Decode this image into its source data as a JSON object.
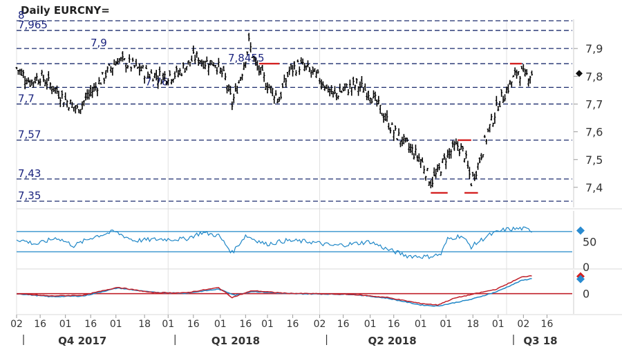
{
  "chart_data": [
    {
      "type": "bar",
      "title": "Daily EURCNY=",
      "price_axis_ticks": [
        7.4,
        7.5,
        7.6,
        7.7,
        7.8,
        7.9
      ],
      "price_axis_tick_labels": [
        "7,4",
        "7,5",
        "7,6",
        "7,7",
        "7,8",
        "7,9"
      ],
      "ylim": [
        7.35,
        8.0
      ],
      "levels": [
        {
          "value": 7.35,
          "label": "7,35"
        },
        {
          "value": 7.43,
          "label": "7,43"
        },
        {
          "value": 7.57,
          "label": "7,57"
        },
        {
          "value": 7.7,
          "label": "7,7"
        },
        {
          "value": 7.76,
          "label": "7,76"
        },
        {
          "value": 7.8455,
          "label": "7,8455"
        },
        {
          "value": 7.9,
          "label": "7,9"
        },
        {
          "value": 7.965,
          "label": "7,965"
        },
        {
          "value": 8.0,
          "label": "8"
        }
      ],
      "last_value": 7.81,
      "anchors": [
        {
          "d": 0,
          "v": 7.83
        },
        {
          "d": 8,
          "v": 7.78
        },
        {
          "d": 14,
          "v": 7.8
        },
        {
          "d": 22,
          "v": 7.76
        },
        {
          "d": 28,
          "v": 7.72
        },
        {
          "d": 36,
          "v": 7.68
        },
        {
          "d": 44,
          "v": 7.74
        },
        {
          "d": 52,
          "v": 7.8
        },
        {
          "d": 60,
          "v": 7.86
        },
        {
          "d": 68,
          "v": 7.84
        },
        {
          "d": 78,
          "v": 7.81
        },
        {
          "d": 86,
          "v": 7.8
        },
        {
          "d": 96,
          "v": 7.81
        },
        {
          "d": 106,
          "v": 7.87
        },
        {
          "d": 112,
          "v": 7.85
        },
        {
          "d": 118,
          "v": 7.85
        },
        {
          "d": 124,
          "v": 7.79
        },
        {
          "d": 128,
          "v": 7.7
        },
        {
          "d": 134,
          "v": 7.82
        },
        {
          "d": 138,
          "v": 7.92
        },
        {
          "d": 142,
          "v": 7.84
        },
        {
          "d": 150,
          "v": 7.76
        },
        {
          "d": 156,
          "v": 7.72
        },
        {
          "d": 162,
          "v": 7.82
        },
        {
          "d": 168,
          "v": 7.84
        },
        {
          "d": 174,
          "v": 7.82
        },
        {
          "d": 182,
          "v": 7.78
        },
        {
          "d": 188,
          "v": 7.73
        },
        {
          "d": 194,
          "v": 7.75
        },
        {
          "d": 202,
          "v": 7.77
        },
        {
          "d": 210,
          "v": 7.74
        },
        {
          "d": 216,
          "v": 7.68
        },
        {
          "d": 224,
          "v": 7.6
        },
        {
          "d": 232,
          "v": 7.55
        },
        {
          "d": 240,
          "v": 7.5
        },
        {
          "d": 246,
          "v": 7.42
        },
        {
          "d": 250,
          "v": 7.45
        },
        {
          "d": 256,
          "v": 7.52
        },
        {
          "d": 262,
          "v": 7.55
        },
        {
          "d": 266,
          "v": 7.52
        },
        {
          "d": 270,
          "v": 7.42
        },
        {
          "d": 274,
          "v": 7.48
        },
        {
          "d": 280,
          "v": 7.6
        },
        {
          "d": 286,
          "v": 7.7
        },
        {
          "d": 292,
          "v": 7.76
        },
        {
          "d": 298,
          "v": 7.82
        },
        {
          "d": 302,
          "v": 7.8
        },
        {
          "d": 306,
          "v": 7.81
        }
      ],
      "red_markers": [
        {
          "d_from": 144,
          "d_to": 156,
          "value": 7.8455
        },
        {
          "d_from": 246,
          "d_to": 256,
          "value": 7.38
        },
        {
          "d_from": 262,
          "d_to": 270,
          "value": 7.57
        },
        {
          "d_from": 266,
          "d_to": 274,
          "value": 7.38
        },
        {
          "d_from": 293,
          "d_to": 300,
          "value": 7.8455
        }
      ]
    },
    {
      "type": "line",
      "indicator": "oscillator",
      "yticks": [
        0,
        50
      ],
      "ylim": [
        0,
        100
      ],
      "bands": [
        30,
        70
      ],
      "anchors": [
        {
          "d": 0,
          "v": 55
        },
        {
          "d": 12,
          "v": 45
        },
        {
          "d": 24,
          "v": 58
        },
        {
          "d": 34,
          "v": 42
        },
        {
          "d": 46,
          "v": 60
        },
        {
          "d": 58,
          "v": 70
        },
        {
          "d": 70,
          "v": 52
        },
        {
          "d": 86,
          "v": 55
        },
        {
          "d": 100,
          "v": 55
        },
        {
          "d": 110,
          "v": 68
        },
        {
          "d": 120,
          "v": 62
        },
        {
          "d": 128,
          "v": 28
        },
        {
          "d": 136,
          "v": 62
        },
        {
          "d": 148,
          "v": 45
        },
        {
          "d": 160,
          "v": 52
        },
        {
          "d": 174,
          "v": 50
        },
        {
          "d": 188,
          "v": 42
        },
        {
          "d": 198,
          "v": 45
        },
        {
          "d": 210,
          "v": 50
        },
        {
          "d": 220,
          "v": 35
        },
        {
          "d": 232,
          "v": 22
        },
        {
          "d": 244,
          "v": 20
        },
        {
          "d": 252,
          "v": 25
        },
        {
          "d": 256,
          "v": 55
        },
        {
          "d": 264,
          "v": 62
        },
        {
          "d": 270,
          "v": 40
        },
        {
          "d": 280,
          "v": 62
        },
        {
          "d": 290,
          "v": 74
        },
        {
          "d": 300,
          "v": 76
        },
        {
          "d": 306,
          "v": 72
        }
      ]
    },
    {
      "type": "line",
      "indicator": "macd",
      "yticks": [
        0
      ],
      "ylim": [
        -0.05,
        0.06
      ],
      "series": [
        {
          "color": "#1f87c7",
          "anchors": [
            {
              "d": 0,
              "v": 0.0
            },
            {
              "d": 20,
              "v": -0.008
            },
            {
              "d": 40,
              "v": -0.006
            },
            {
              "d": 60,
              "v": 0.015
            },
            {
              "d": 80,
              "v": 0.004
            },
            {
              "d": 100,
              "v": 0.001
            },
            {
              "d": 120,
              "v": 0.012
            },
            {
              "d": 130,
              "v": -0.004
            },
            {
              "d": 140,
              "v": 0.006
            },
            {
              "d": 160,
              "v": 0.0
            },
            {
              "d": 200,
              "v": -0.002
            },
            {
              "d": 220,
              "v": -0.012
            },
            {
              "d": 240,
              "v": -0.03
            },
            {
              "d": 250,
              "v": -0.033
            },
            {
              "d": 270,
              "v": -0.015
            },
            {
              "d": 285,
              "v": 0.005
            },
            {
              "d": 300,
              "v": 0.035
            },
            {
              "d": 306,
              "v": 0.04
            }
          ]
        },
        {
          "color": "#c0202a",
          "anchors": [
            {
              "d": 0,
              "v": 0.0
            },
            {
              "d": 20,
              "v": -0.006
            },
            {
              "d": 40,
              "v": -0.004
            },
            {
              "d": 60,
              "v": 0.017
            },
            {
              "d": 80,
              "v": 0.003
            },
            {
              "d": 100,
              "v": 0.002
            },
            {
              "d": 120,
              "v": 0.016
            },
            {
              "d": 128,
              "v": -0.01
            },
            {
              "d": 140,
              "v": 0.008
            },
            {
              "d": 160,
              "v": 0.001
            },
            {
              "d": 200,
              "v": -0.002
            },
            {
              "d": 220,
              "v": -0.01
            },
            {
              "d": 240,
              "v": -0.026
            },
            {
              "d": 250,
              "v": -0.03
            },
            {
              "d": 260,
              "v": -0.012
            },
            {
              "d": 285,
              "v": 0.012
            },
            {
              "d": 300,
              "v": 0.044
            },
            {
              "d": 306,
              "v": 0.048
            }
          ]
        }
      ]
    }
  ],
  "x_axis": {
    "day_ticks": [
      {
        "d": 0,
        "label": "02"
      },
      {
        "d": 14,
        "label": "16"
      },
      {
        "d": 29,
        "label": "01"
      },
      {
        "d": 44,
        "label": "16"
      },
      {
        "d": 59,
        "label": "01"
      },
      {
        "d": 76,
        "label": "18"
      },
      {
        "d": 90,
        "label": "01"
      },
      {
        "d": 105,
        "label": "16"
      },
      {
        "d": 121,
        "label": "01"
      },
      {
        "d": 136,
        "label": "16"
      },
      {
        "d": 149,
        "label": "01"
      },
      {
        "d": 164,
        "label": "16"
      },
      {
        "d": 180,
        "label": "02"
      },
      {
        "d": 194,
        "label": "16"
      },
      {
        "d": 210,
        "label": "01"
      },
      {
        "d": 224,
        "label": "16"
      },
      {
        "d": 240,
        "label": "01"
      },
      {
        "d": 255,
        "label": "01"
      },
      {
        "d": 271,
        "label": "18"
      },
      {
        "d": 286,
        "label": "01"
      },
      {
        "d": 301,
        "label": "02"
      },
      {
        "d": 315,
        "label": "16"
      }
    ],
    "quarters": [
      {
        "d": 35,
        "label": "Q4 2017"
      },
      {
        "d": 126,
        "label": "Q1 2018"
      },
      {
        "d": 219,
        "label": "Q2 2018"
      },
      {
        "d": 307,
        "label": "Q3 18"
      }
    ],
    "quarter_separators": [
      0,
      90,
      180,
      291
    ]
  },
  "colors": {
    "price": "#000000",
    "level_lines": "#1a2a6c",
    "level_labels": "#1a237e",
    "red_markers": "#d42020",
    "oscillator": "#1f87c7",
    "accent_diamond": "#2a8bd0"
  }
}
